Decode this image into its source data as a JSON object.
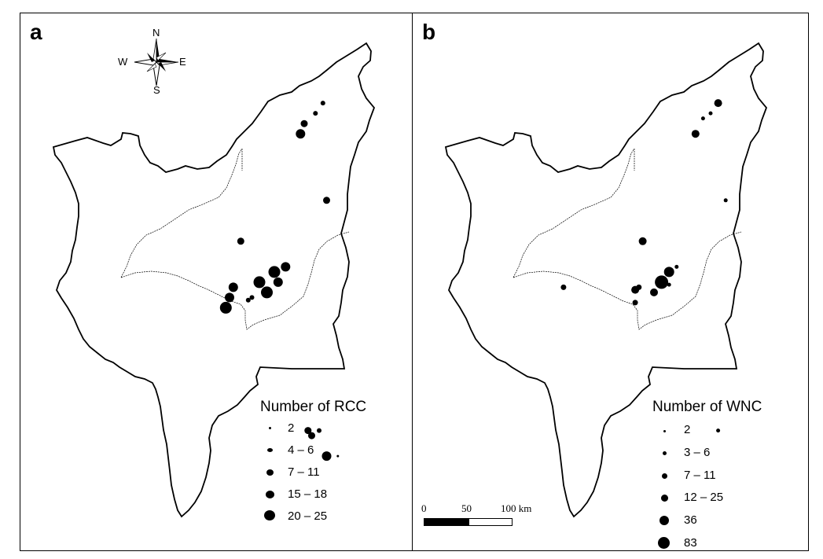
{
  "panels": [
    {
      "letter": "a",
      "legend_title": "Number of RCC",
      "legend_classes": [
        "2",
        "4 – 6",
        "7 – 11",
        "15 – 18",
        "20 – 25"
      ],
      "points": [
        {
          "lon": 0.81,
          "lat": 0.16,
          "cls": 1
        },
        {
          "lon": 0.79,
          "lat": 0.18,
          "cls": 1
        },
        {
          "lon": 0.76,
          "lat": 0.2,
          "cls": 2
        },
        {
          "lon": 0.75,
          "lat": 0.22,
          "cls": 3
        },
        {
          "lon": 0.82,
          "lat": 0.35,
          "cls": 2
        },
        {
          "lon": 0.59,
          "lat": 0.43,
          "cls": 2
        },
        {
          "lon": 0.71,
          "lat": 0.48,
          "cls": 3
        },
        {
          "lon": 0.68,
          "lat": 0.49,
          "cls": 4
        },
        {
          "lon": 0.69,
          "lat": 0.51,
          "cls": 3
        },
        {
          "lon": 0.64,
          "lat": 0.51,
          "cls": 4
        },
        {
          "lon": 0.66,
          "lat": 0.53,
          "cls": 4
        },
        {
          "lon": 0.57,
          "lat": 0.52,
          "cls": 3
        },
        {
          "lon": 0.56,
          "lat": 0.54,
          "cls": 3
        },
        {
          "lon": 0.62,
          "lat": 0.54,
          "cls": 1
        },
        {
          "lon": 0.61,
          "lat": 0.545,
          "cls": 1
        },
        {
          "lon": 0.55,
          "lat": 0.56,
          "cls": 4
        },
        {
          "lon": 0.77,
          "lat": 0.8,
          "cls": 2
        },
        {
          "lon": 0.78,
          "lat": 0.81,
          "cls": 2
        },
        {
          "lon": 0.8,
          "lat": 0.8,
          "cls": 1
        },
        {
          "lon": 0.82,
          "lat": 0.85,
          "cls": 3
        },
        {
          "lon": 0.85,
          "lat": 0.85,
          "cls": 0
        }
      ]
    },
    {
      "letter": "b",
      "legend_title": "Number of WNC",
      "legend_classes": [
        "2",
        "3 – 6",
        "7 – 11",
        "12 – 25",
        "36",
        "83"
      ],
      "points": [
        {
          "lon": 0.81,
          "lat": 0.16,
          "cls": 3
        },
        {
          "lon": 0.79,
          "lat": 0.18,
          "cls": 1
        },
        {
          "lon": 0.77,
          "lat": 0.19,
          "cls": 1
        },
        {
          "lon": 0.75,
          "lat": 0.22,
          "cls": 3
        },
        {
          "lon": 0.83,
          "lat": 0.35,
          "cls": 1
        },
        {
          "lon": 0.61,
          "lat": 0.43,
          "cls": 3
        },
        {
          "lon": 0.7,
          "lat": 0.48,
          "cls": 1
        },
        {
          "lon": 0.68,
          "lat": 0.49,
          "cls": 4
        },
        {
          "lon": 0.66,
          "lat": 0.51,
          "cls": 5
        },
        {
          "lon": 0.68,
          "lat": 0.515,
          "cls": 1
        },
        {
          "lon": 0.64,
          "lat": 0.53,
          "cls": 3
        },
        {
          "lon": 0.6,
          "lat": 0.52,
          "cls": 2
        },
        {
          "lon": 0.59,
          "lat": 0.525,
          "cls": 3
        },
        {
          "lon": 0.59,
          "lat": 0.55,
          "cls": 2
        },
        {
          "lon": 0.4,
          "lat": 0.52,
          "cls": 2
        },
        {
          "lon": 0.81,
          "lat": 0.8,
          "cls": 1
        }
      ]
    }
  ],
  "compass": {
    "n": "N",
    "s": "S",
    "e": "E",
    "w": "W"
  },
  "scale_bar": {
    "labels": [
      "0",
      "50",
      "100 km"
    ]
  }
}
